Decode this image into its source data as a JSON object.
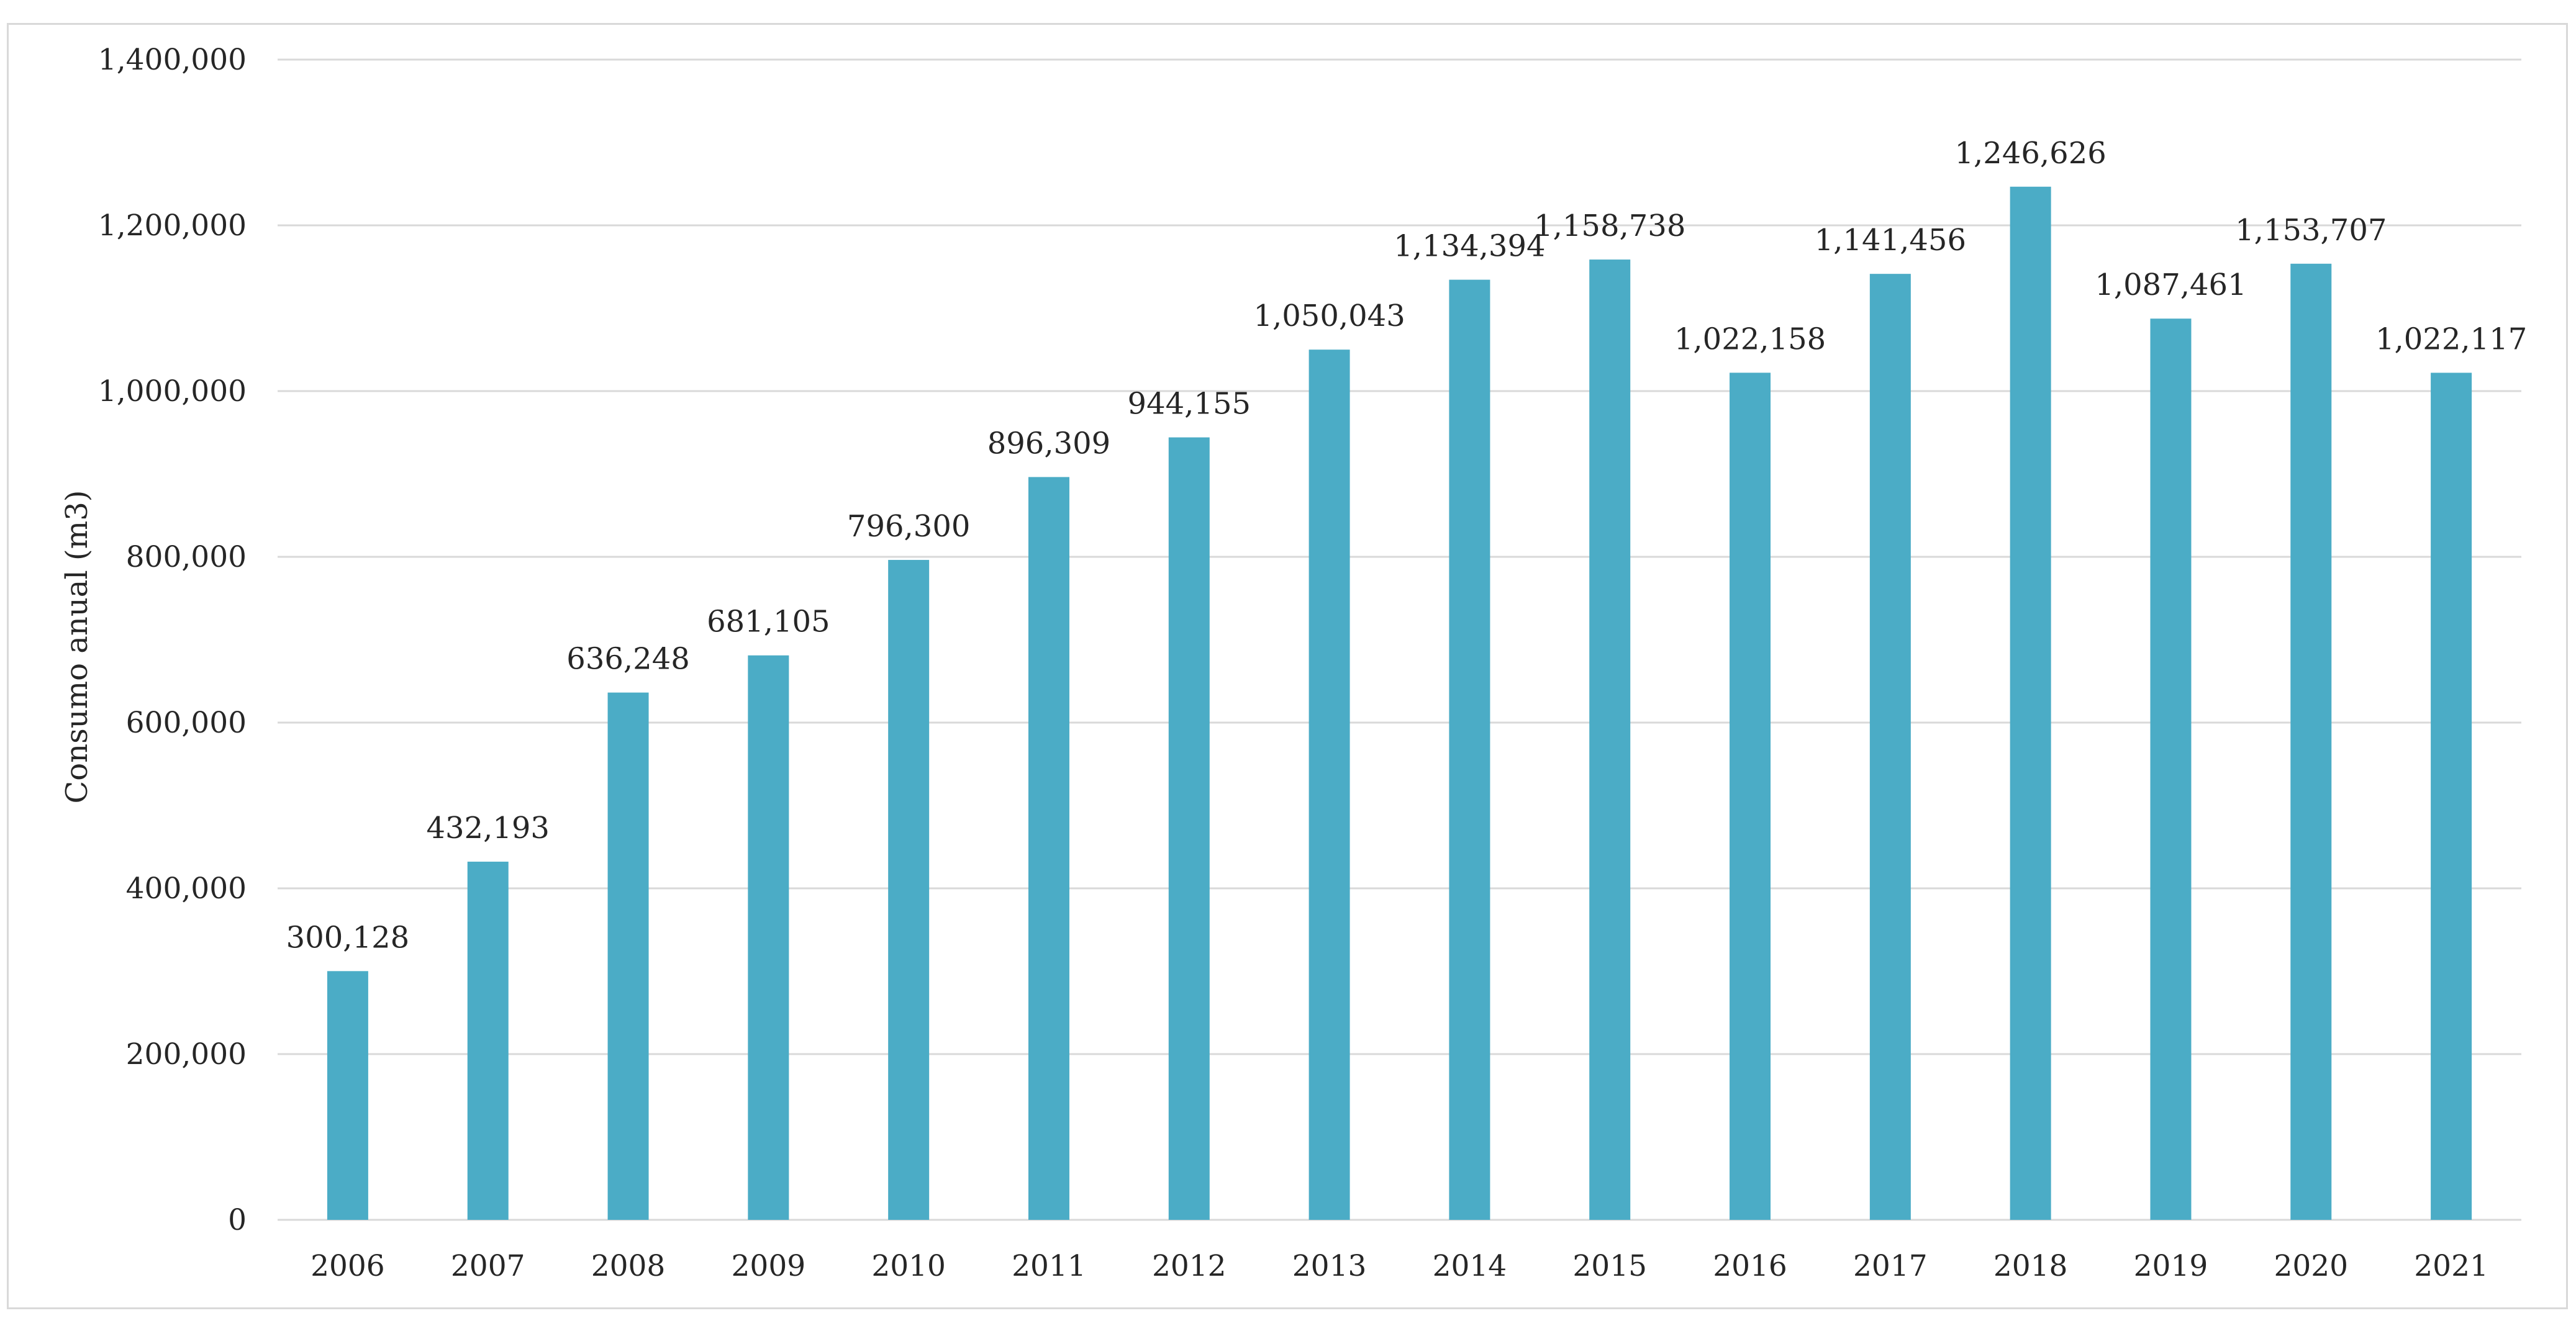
{
  "chart_data": {
    "type": "bar",
    "title": "",
    "xlabel": "",
    "ylabel": "Consumo anual (m3)",
    "ylim": [
      0,
      1400000
    ],
    "yticks": [
      0,
      200000,
      400000,
      600000,
      800000,
      1000000,
      1200000,
      1400000
    ],
    "ytick_labels": [
      "0",
      "200,000",
      "400,000",
      "600,000",
      "800,000",
      "1,000,000",
      "1,200,000",
      "1,400,000"
    ],
    "categories": [
      "2006",
      "2007",
      "2008",
      "2009",
      "2010",
      "2011",
      "2012",
      "2013",
      "2014",
      "2015",
      "2016",
      "2017",
      "2018",
      "2019",
      "2020",
      "2021"
    ],
    "values": [
      300128,
      432193,
      636248,
      681105,
      796300,
      896309,
      944155,
      1050043,
      1134394,
      1158738,
      1022158,
      1141456,
      1246626,
      1087461,
      1153707,
      1022117
    ],
    "value_labels": [
      "300,128",
      "432,193",
      "636,248",
      "681,105",
      "796,300",
      "896,309",
      "944,155",
      "1,050,043",
      "1,134,394",
      "1,158,738",
      "1,022,158",
      "1,141,456",
      "1,246,626",
      "1,087,461",
      "1,153,707",
      "1,022,117"
    ],
    "grid": true,
    "legend": "none",
    "bar_color": "#4BACC6",
    "grid_color": "#d9d9d9"
  }
}
